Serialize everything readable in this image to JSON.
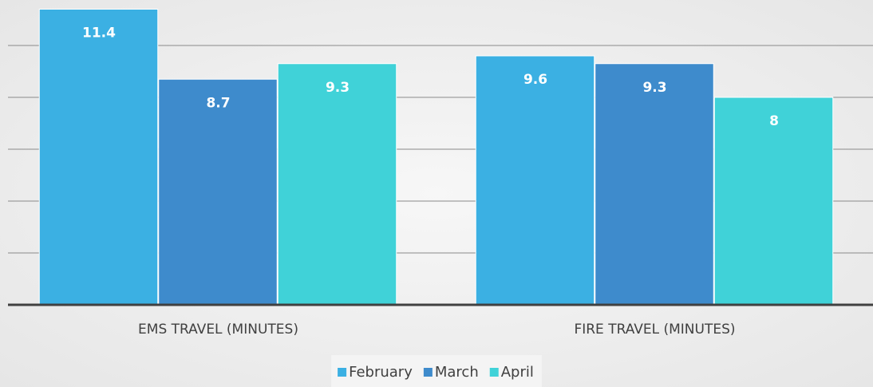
{
  "chart_data": {
    "type": "bar",
    "categories": [
      "EMS TRAVEL (MINUTES)",
      "FIRE TRAVEL (MINUTES)"
    ],
    "series": [
      {
        "name": "February",
        "color": "#3bb0e3",
        "values": [
          11.4,
          9.6
        ]
      },
      {
        "name": "March",
        "color": "#3e8bcc",
        "values": [
          8.7,
          9.3
        ]
      },
      {
        "name": "April",
        "color": "#40d2d8",
        "values": [
          9.3,
          8
        ]
      }
    ],
    "ylim": [
      0,
      12
    ],
    "yticks": [
      0,
      2,
      4,
      6,
      8,
      10
    ],
    "grid": true,
    "legend": "bottom"
  }
}
